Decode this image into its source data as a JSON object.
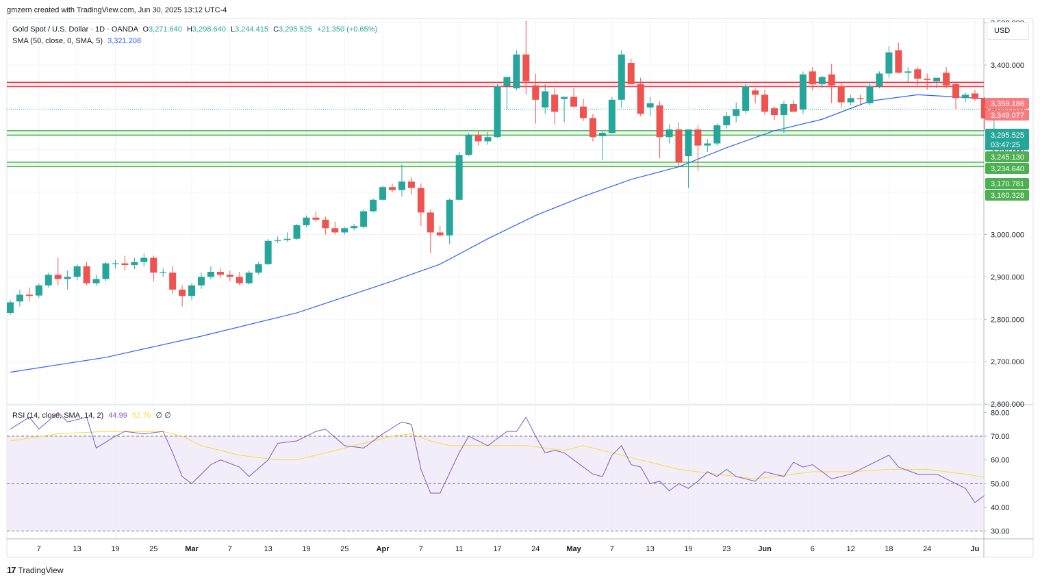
{
  "header": {
    "credit": "gmzern created with TradingView.com, Jun 30, 2025 13:12 UTC-4"
  },
  "legend": {
    "symbol": "Gold Spot / U.S. Dollar · 1D · OANDA",
    "open_label": "O",
    "open": "3,271.640",
    "high_label": "H",
    "high": "3,298.640",
    "low_label": "L",
    "low": "3,244.415",
    "close_label": "C",
    "close": "3,295.525",
    "change": "+21.350 (+0.65%)",
    "sma_label": "SMA (50, close, 0, SMA, 5)",
    "sma_value": "3,321.208"
  },
  "rsi_legend": {
    "label": "RSI (14, close, SMA, 14, 2)",
    "rsi_value": "44.99",
    "rsi_sma_value": "52.70",
    "extra": "∅ ∅"
  },
  "currency": "USD",
  "footer": {
    "logo": "17",
    "brand": "TradingView"
  },
  "colors": {
    "up": "#26a69a",
    "down": "#ef5350",
    "sma": "#2962ff",
    "rsi": "#7e57c2",
    "rsi_sma": "#fdd835",
    "resistance": "#f23645",
    "support": "#4caf50",
    "rsi_band": "#ede7f6"
  },
  "chart_data": {
    "type": "candlestick",
    "price_axis": {
      "ticks": [
        2600,
        2700,
        2800,
        2900,
        3000,
        3100,
        3200,
        3300,
        3400,
        3500
      ],
      "tick_labels": [
        "2,600.000",
        "2,700.000",
        "2,800.000",
        "2,900.000",
        "3,000.000",
        "3,100.000",
        "3,200.000",
        "3,300.000",
        "3,400.000",
        "3,500.000"
      ],
      "range": [
        2600,
        3510
      ]
    },
    "time_axis": {
      "labels": [
        "7",
        "13",
        "19",
        "25",
        "Mar",
        "7",
        "13",
        "19",
        "25",
        "Apr",
        "7",
        "11",
        "17",
        "24",
        "May",
        "7",
        "13",
        "19",
        "23",
        "Jun",
        "6",
        "12",
        "18",
        "24",
        "Ju"
      ],
      "label_bars": [
        3,
        7,
        11,
        15,
        19,
        23,
        27,
        31,
        35,
        39,
        43,
        47,
        51,
        55,
        59,
        63,
        67,
        71,
        75,
        79,
        84,
        88,
        92,
        96,
        101
      ]
    },
    "candles": [
      [
        2815,
        2845,
        2810,
        2840
      ],
      [
        2842,
        2870,
        2830,
        2858
      ],
      [
        2858,
        2875,
        2842,
        2855
      ],
      [
        2856,
        2885,
        2850,
        2880
      ],
      [
        2880,
        2910,
        2875,
        2905
      ],
      [
        2905,
        2945,
        2880,
        2895
      ],
      [
        2895,
        2915,
        2870,
        2900
      ],
      [
        2900,
        2930,
        2892,
        2925
      ],
      [
        2925,
        2935,
        2880,
        2885
      ],
      [
        2885,
        2905,
        2880,
        2895
      ],
      [
        2895,
        2935,
        2890,
        2932
      ],
      [
        2930,
        2940,
        2920,
        2932
      ],
      [
        2932,
        2950,
        2915,
        2928
      ],
      [
        2928,
        2945,
        2918,
        2935
      ],
      [
        2935,
        2955,
        2925,
        2945
      ],
      [
        2945,
        2950,
        2890,
        2910
      ],
      [
        2910,
        2920,
        2900,
        2912
      ],
      [
        2910,
        2925,
        2860,
        2870
      ],
      [
        2870,
        2880,
        2830,
        2855
      ],
      [
        2855,
        2885,
        2845,
        2880
      ],
      [
        2880,
        2910,
        2872,
        2900
      ],
      [
        2900,
        2925,
        2895,
        2912
      ],
      [
        2912,
        2920,
        2898,
        2905
      ],
      [
        2905,
        2915,
        2890,
        2900
      ],
      [
        2900,
        2912,
        2880,
        2885
      ],
      [
        2885,
        2915,
        2882,
        2910
      ],
      [
        2910,
        2935,
        2905,
        2930
      ],
      [
        2930,
        2990,
        2928,
        2985
      ],
      [
        2985,
        2995,
        2980,
        2987
      ],
      [
        2987,
        3005,
        2983,
        2990
      ],
      [
        2990,
        3025,
        2988,
        3022
      ],
      [
        3022,
        3045,
        3018,
        3040
      ],
      [
        3040,
        3055,
        3030,
        3035
      ],
      [
        3035,
        3042,
        3000,
        3015
      ],
      [
        3015,
        3030,
        3000,
        3005
      ],
      [
        3005,
        3018,
        3000,
        3015
      ],
      [
        3015,
        3025,
        3010,
        3020
      ],
      [
        3018,
        3060,
        3015,
        3055
      ],
      [
        3055,
        3085,
        3052,
        3082
      ],
      [
        3082,
        3115,
        3080,
        3112
      ],
      [
        3112,
        3120,
        3100,
        3105
      ],
      [
        3105,
        3165,
        3090,
        3125
      ],
      [
        3125,
        3135,
        3095,
        3110
      ],
      [
        3110,
        3120,
        3020,
        3052
      ],
      [
        3052,
        3060,
        2956,
        3005
      ],
      [
        3005,
        3020,
        2995,
        2998
      ],
      [
        2998,
        3085,
        2978,
        3082
      ],
      [
        3082,
        3195,
        3080,
        3188
      ],
      [
        3188,
        3240,
        3185,
        3235
      ],
      [
        3235,
        3245,
        3210,
        3220
      ],
      [
        3220,
        3242,
        3212,
        3230
      ],
      [
        3230,
        3355,
        3228,
        3350
      ],
      [
        3350,
        3372,
        3295,
        3372
      ],
      [
        3345,
        3435,
        3340,
        3425
      ],
      [
        3425,
        3505,
        3330,
        3362
      ],
      [
        3352,
        3380,
        3262,
        3318
      ],
      [
        3300,
        3355,
        3285,
        3338
      ],
      [
        3330,
        3345,
        3260,
        3290
      ],
      [
        3320,
        3325,
        3265,
        3325
      ],
      [
        3325,
        3345,
        3300,
        3302
      ],
      [
        3302,
        3320,
        3268,
        3275
      ],
      [
        3275,
        3285,
        3220,
        3230
      ],
      [
        3232,
        3245,
        3175,
        3240
      ],
      [
        3240,
        3325,
        3238,
        3318
      ],
      [
        3318,
        3435,
        3300,
        3425
      ],
      [
        3405,
        3415,
        3355,
        3355
      ],
      [
        3355,
        3370,
        3280,
        3285
      ],
      [
        3300,
        3325,
        3280,
        3310
      ],
      [
        3305,
        3315,
        3180,
        3230
      ],
      [
        3230,
        3260,
        3215,
        3248
      ],
      [
        3248,
        3265,
        3160,
        3170
      ],
      [
        3185,
        3248,
        3110,
        3248
      ],
      [
        3248,
        3258,
        3150,
        3210
      ],
      [
        3210,
        3225,
        3195,
        3215
      ],
      [
        3215,
        3262,
        3210,
        3258
      ],
      [
        3258,
        3290,
        3250,
        3280
      ],
      [
        3280,
        3312,
        3265,
        3296
      ],
      [
        3292,
        3355,
        3285,
        3350
      ],
      [
        3340,
        3345,
        3310,
        3330
      ],
      [
        3330,
        3342,
        3282,
        3290
      ],
      [
        3298,
        3302,
        3270,
        3282
      ],
      [
        3282,
        3315,
        3240,
        3308
      ],
      [
        3308,
        3318,
        3290,
        3290
      ],
      [
        3295,
        3385,
        3285,
        3378
      ],
      [
        3385,
        3395,
        3340,
        3355
      ],
      [
        3355,
        3375,
        3345,
        3372
      ],
      [
        3378,
        3403,
        3310,
        3352
      ],
      [
        3350,
        3358,
        3300,
        3312
      ],
      [
        3312,
        3330,
        3305,
        3322
      ],
      [
        3322,
        3330,
        3305,
        3320
      ],
      [
        3310,
        3360,
        3305,
        3350
      ],
      [
        3350,
        3385,
        3345,
        3380
      ],
      [
        3380,
        3445,
        3370,
        3430
      ],
      [
        3435,
        3452,
        3380,
        3382
      ],
      [
        3382,
        3395,
        3360,
        3385
      ],
      [
        3390,
        3395,
        3352,
        3368
      ],
      [
        3368,
        3380,
        3342,
        3365
      ],
      [
        3362,
        3370,
        3345,
        3370
      ],
      [
        3382,
        3395,
        3345,
        3352
      ],
      [
        3355,
        3360,
        3295,
        3322
      ],
      [
        3322,
        3335,
        3312,
        3330
      ],
      [
        3333,
        3342,
        3315,
        3320
      ],
      [
        3322,
        3325,
        3245,
        3274
      ],
      [
        3272,
        3299,
        3244,
        3296
      ]
    ],
    "sma50": [
      [
        0,
        2675
      ],
      [
        10,
        2710
      ],
      [
        20,
        2760
      ],
      [
        30,
        2815
      ],
      [
        40,
        2890
      ],
      [
        45,
        2930
      ],
      [
        50,
        2990
      ],
      [
        55,
        3045
      ],
      [
        60,
        3090
      ],
      [
        65,
        3130
      ],
      [
        70,
        3160
      ],
      [
        75,
        3205
      ],
      [
        80,
        3245
      ],
      [
        85,
        3272
      ],
      [
        90,
        3315
      ],
      [
        95,
        3330
      ],
      [
        102,
        3321
      ]
    ],
    "levels": {
      "resistance": [
        3359.186,
        3349.077
      ],
      "support": [
        3245.13,
        3234.64,
        3170.781,
        3160.328
      ]
    },
    "level_labels": [
      "3,359.186",
      "3,349.077",
      "3,245.130",
      "3,234.640",
      "3,170.781",
      "3,160.328"
    ],
    "current_price_label": "3,295.525",
    "countdown": "03:47:25",
    "rsi": {
      "range": [
        27,
        83
      ],
      "ticks": [
        30,
        40,
        50,
        60,
        70,
        80
      ],
      "tick_labels": [
        "30.00",
        "40.00",
        "50.00",
        "60.00",
        "70.00",
        "80.00"
      ],
      "band": [
        30,
        70
      ],
      "midline": 50,
      "values": [
        [
          0,
          73
        ],
        [
          2,
          78
        ],
        [
          3,
          73
        ],
        [
          5,
          80
        ],
        [
          6,
          76
        ],
        [
          8,
          78
        ],
        [
          9,
          65
        ],
        [
          11,
          70
        ],
        [
          12,
          72
        ],
        [
          14,
          71
        ],
        [
          16,
          72
        ],
        [
          17,
          63
        ],
        [
          18,
          53
        ],
        [
          19,
          50
        ],
        [
          21,
          58
        ],
        [
          22,
          60
        ],
        [
          24,
          57
        ],
        [
          25,
          53
        ],
        [
          27,
          60
        ],
        [
          28,
          67
        ],
        [
          30,
          68
        ],
        [
          32,
          72
        ],
        [
          33,
          73
        ],
        [
          35,
          66
        ],
        [
          37,
          65
        ],
        [
          39,
          71
        ],
        [
          41,
          76
        ],
        [
          42,
          75
        ],
        [
          43,
          56
        ],
        [
          44,
          46
        ],
        [
          45,
          46
        ],
        [
          47,
          63
        ],
        [
          48,
          70
        ],
        [
          50,
          66
        ],
        [
          52,
          72
        ],
        [
          53,
          72
        ],
        [
          54,
          78
        ],
        [
          55,
          70
        ],
        [
          56,
          63
        ],
        [
          57,
          64
        ],
        [
          58,
          63
        ],
        [
          59,
          60
        ],
        [
          60,
          57
        ],
        [
          61,
          54
        ],
        [
          62,
          53
        ],
        [
          63,
          62
        ],
        [
          64,
          66
        ],
        [
          65,
          58
        ],
        [
          66,
          57
        ],
        [
          67,
          50
        ],
        [
          68,
          51
        ],
        [
          69,
          47
        ],
        [
          70,
          50
        ],
        [
          71,
          48
        ],
        [
          72,
          51
        ],
        [
          73,
          55
        ],
        [
          74,
          53
        ],
        [
          75,
          56
        ],
        [
          76,
          53
        ],
        [
          78,
          51
        ],
        [
          79,
          55
        ],
        [
          81,
          53
        ],
        [
          82,
          59
        ],
        [
          83,
          57
        ],
        [
          84,
          58
        ],
        [
          85,
          55
        ],
        [
          86,
          52
        ],
        [
          88,
          54
        ],
        [
          90,
          58
        ],
        [
          92,
          62
        ],
        [
          93,
          57
        ],
        [
          95,
          54
        ],
        [
          97,
          54
        ],
        [
          99,
          50
        ],
        [
          100,
          48
        ],
        [
          101,
          42
        ],
        [
          102,
          45
        ]
      ],
      "sma": [
        [
          0,
          68
        ],
        [
          5,
          71
        ],
        [
          10,
          72
        ],
        [
          14,
          72
        ],
        [
          16,
          72
        ],
        [
          18,
          70
        ],
        [
          20,
          66
        ],
        [
          24,
          62
        ],
        [
          28,
          60
        ],
        [
          30,
          60
        ],
        [
          32,
          62
        ],
        [
          35,
          65
        ],
        [
          38,
          68
        ],
        [
          40,
          70
        ],
        [
          42,
          71
        ],
        [
          44,
          68
        ],
        [
          46,
          66
        ],
        [
          50,
          66
        ],
        [
          54,
          66
        ],
        [
          58,
          64
        ],
        [
          60,
          66
        ],
        [
          62,
          64
        ],
        [
          64,
          62
        ],
        [
          66,
          60
        ],
        [
          68,
          58
        ],
        [
          70,
          56
        ],
        [
          74,
          54
        ],
        [
          78,
          52
        ],
        [
          80,
          53
        ],
        [
          84,
          55
        ],
        [
          88,
          55
        ],
        [
          92,
          56
        ],
        [
          96,
          56
        ],
        [
          100,
          54
        ],
        [
          102,
          52.7
        ]
      ]
    }
  }
}
